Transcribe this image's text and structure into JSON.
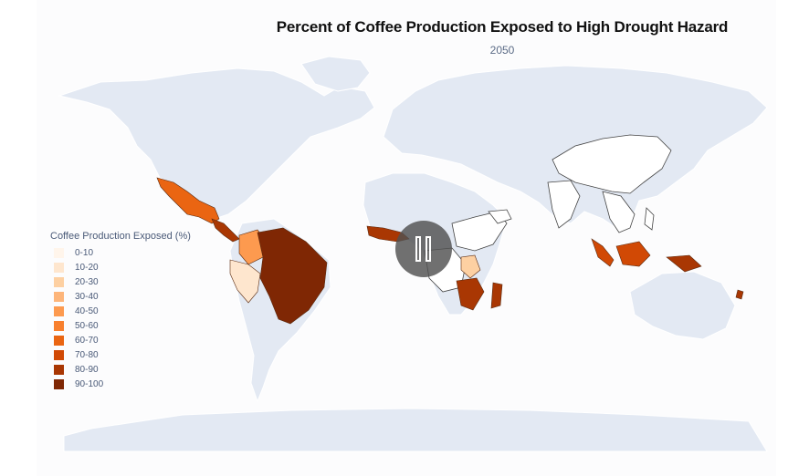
{
  "map": {
    "title": "Percent of Coffee Production Exposed to High Drought Hazard",
    "subtitle": "2050",
    "colors": {
      "land": "#e3e9f3",
      "ocean": "#fcfcfd",
      "no_data_outline": "#444444",
      "pause_overlay": "#555555"
    }
  },
  "legend": {
    "title": "Coffee Production Exposed (%)",
    "items": [
      {
        "label": "0-10",
        "color": "#fff5eb"
      },
      {
        "label": "10-20",
        "color": "#fee6ce"
      },
      {
        "label": "20-30",
        "color": "#fdd0a2"
      },
      {
        "label": "30-40",
        "color": "#fdb57a"
      },
      {
        "label": "40-50",
        "color": "#fd9a4f"
      },
      {
        "label": "50-60",
        "color": "#f8802e"
      },
      {
        "label": "60-70",
        "color": "#ea6512"
      },
      {
        "label": "70-80",
        "color": "#d14905"
      },
      {
        "label": "80-90",
        "color": "#a93703"
      },
      {
        "label": "90-100",
        "color": "#7f2704"
      }
    ]
  },
  "regions": [
    {
      "name": "Mexico",
      "range": "60-70"
    },
    {
      "name": "Central America",
      "range": "80-90"
    },
    {
      "name": "Colombia",
      "range": "40-50"
    },
    {
      "name": "Peru",
      "range": "10-20"
    },
    {
      "name": "Brazil",
      "range": "90-100"
    },
    {
      "name": "West Africa",
      "range": "80-90"
    },
    {
      "name": "East Africa",
      "range": "20-30"
    },
    {
      "name": "Madagascar",
      "range": "80-90"
    },
    {
      "name": "Indonesia",
      "range": "70-80"
    },
    {
      "name": "Papua New Guinea",
      "range": "80-90"
    }
  ],
  "controls": {
    "pause_icon": "pause-icon"
  }
}
